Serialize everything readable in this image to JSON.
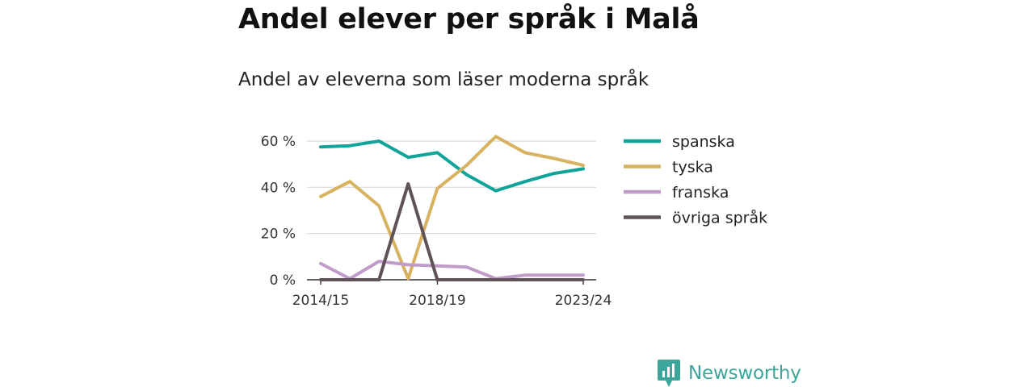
{
  "header": {
    "title": "Andel elever per språk i Malå",
    "subtitle": "Andel av eleverna som läser moderna språk"
  },
  "brand": {
    "name": "Newsworthy",
    "icon": "newsworthy-logo-icon",
    "color": "#3aa79a"
  },
  "chart_data": {
    "type": "line",
    "x": [
      "2014/15",
      "2015/16",
      "2016/17",
      "2017/18",
      "2018/19",
      "2019/20",
      "2020/21",
      "2021/22",
      "2022/23",
      "2023/24"
    ],
    "x_tick_labels": [
      "2014/15",
      "2018/19",
      "2023/24"
    ],
    "y_tick_labels": [
      "0 %",
      "20 %",
      "40 %",
      "60 %"
    ],
    "y_ticks": [
      0,
      20,
      40,
      60
    ],
    "ylim": [
      0,
      60
    ],
    "grid": true,
    "legend_position": "right",
    "series": [
      {
        "name": "spanska",
        "color": "#0fa399",
        "values": [
          57.5,
          58,
          60,
          53,
          55,
          45.5,
          38.5,
          42.5,
          46,
          48
        ]
      },
      {
        "name": "tyska",
        "color": "#d8b261",
        "values": [
          36,
          42.5,
          32,
          0.5,
          39.5,
          49.5,
          62,
          55,
          52.5,
          49.5
        ]
      },
      {
        "name": "franska",
        "color": "#c19ccb",
        "values": [
          7,
          0.5,
          8,
          6.5,
          6,
          5.5,
          0.5,
          2,
          2,
          2
        ]
      },
      {
        "name": "övriga språk",
        "color": "#5f5358",
        "values": [
          0,
          0,
          0,
          41.5,
          0,
          0,
          0,
          0,
          0,
          0
        ]
      }
    ]
  }
}
